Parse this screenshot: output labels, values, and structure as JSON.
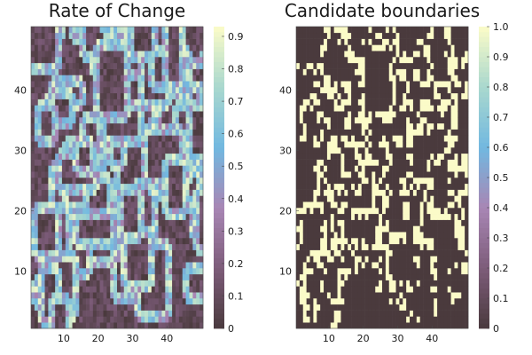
{
  "chart_data": [
    {
      "type": "heatmap",
      "title": "Rate of Change",
      "xlim": [
        0.5,
        50.5
      ],
      "ylim": [
        0.5,
        50.5
      ],
      "x_ticks": [
        10,
        20,
        30,
        40
      ],
      "y_ticks": [
        10,
        20,
        30,
        40
      ],
      "colorbar": {
        "limits": [
          0,
          0.93
        ],
        "ticks": [
          0,
          0.1,
          0.2,
          0.3,
          0.4,
          0.5,
          0.6,
          0.7,
          0.8,
          0.9
        ]
      },
      "colormap": [
        "#4a3a3d",
        "#7d5c7a",
        "#a886b4",
        "#72b8e0",
        "#a9d8ce",
        "#fbfbc8"
      ],
      "grid": false,
      "cell_count": [
        50,
        50
      ]
    },
    {
      "type": "heatmap",
      "title": "Candidate boundaries",
      "xlim": [
        0.5,
        50.5
      ],
      "ylim": [
        0.5,
        50.5
      ],
      "x_ticks": [
        10,
        20,
        30,
        40
      ],
      "y_ticks": [
        10,
        20,
        30,
        40
      ],
      "colorbar": {
        "limits": [
          0,
          1.0
        ],
        "ticks": [
          0,
          0.1,
          0.2,
          0.3,
          0.4,
          0.5,
          0.6,
          0.7,
          0.8,
          0.9,
          1.0
        ]
      },
      "colormap": [
        "#4a3a3d",
        "#7d5c7a",
        "#a886b4",
        "#72b8e0",
        "#a9d8ce",
        "#fbfbc8"
      ],
      "grid": false,
      "cell_count": [
        50,
        50
      ]
    }
  ]
}
